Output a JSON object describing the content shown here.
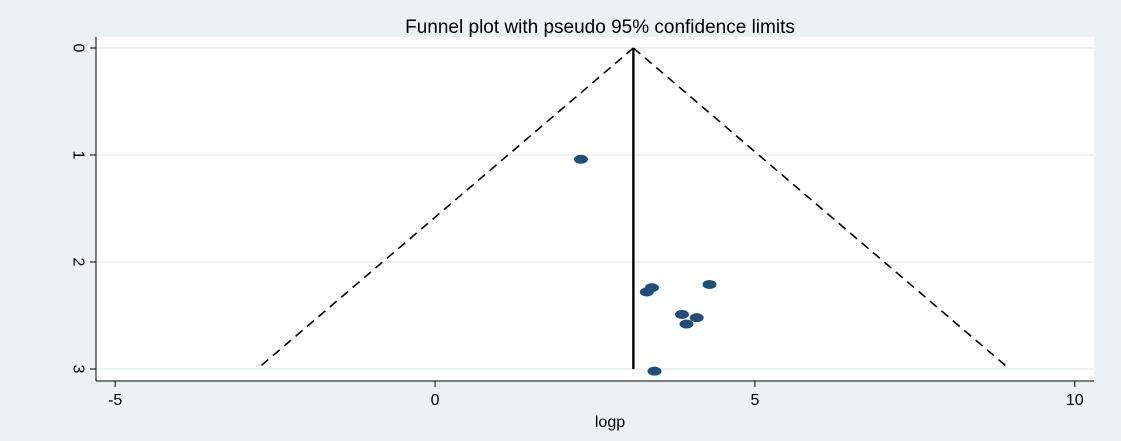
{
  "chart_data": {
    "type": "scatter",
    "title": "Funnel plot with pseudo 95% confidence limits",
    "xlabel": "logp",
    "ylabel": "",
    "xlim": [
      -5.3,
      10.3
    ],
    "ylim": [
      0,
      3
    ],
    "y_reversed": true,
    "x_ticks": [
      -5,
      0,
      5,
      10
    ],
    "x_tick_labels": [
      "-5",
      "0",
      "5",
      "10"
    ],
    "y_ticks": [
      0,
      1,
      2,
      3
    ],
    "y_tick_labels": [
      "0",
      "1",
      "2",
      "3"
    ],
    "y_tick_labels_rotated": true,
    "grid": "horizontal",
    "legend": "none",
    "pooled_estimate": 3.1,
    "confidence_limit_lines": {
      "style": "dashed",
      "left": {
        "x": [
          3.1,
          -2.78
        ],
        "y": [
          0,
          3
        ]
      },
      "right": {
        "x": [
          3.1,
          8.98
        ],
        "y": [
          0,
          3
        ]
      }
    },
    "points": [
      {
        "x": 2.28,
        "y": 1.04
      },
      {
        "x": 4.29,
        "y": 2.21
      },
      {
        "x": 3.39,
        "y": 2.24
      },
      {
        "x": 3.31,
        "y": 2.28
      },
      {
        "x": 3.86,
        "y": 2.49
      },
      {
        "x": 4.09,
        "y": 2.52
      },
      {
        "x": 3.93,
        "y": 2.58
      },
      {
        "x": 3.43,
        "y": 3.02
      }
    ],
    "colors": {
      "background": "#eaf2f3",
      "plot_area": "#ffffff",
      "marker": "#1f4e79",
      "lines": "#000000",
      "grid": "#e8eef0"
    }
  }
}
